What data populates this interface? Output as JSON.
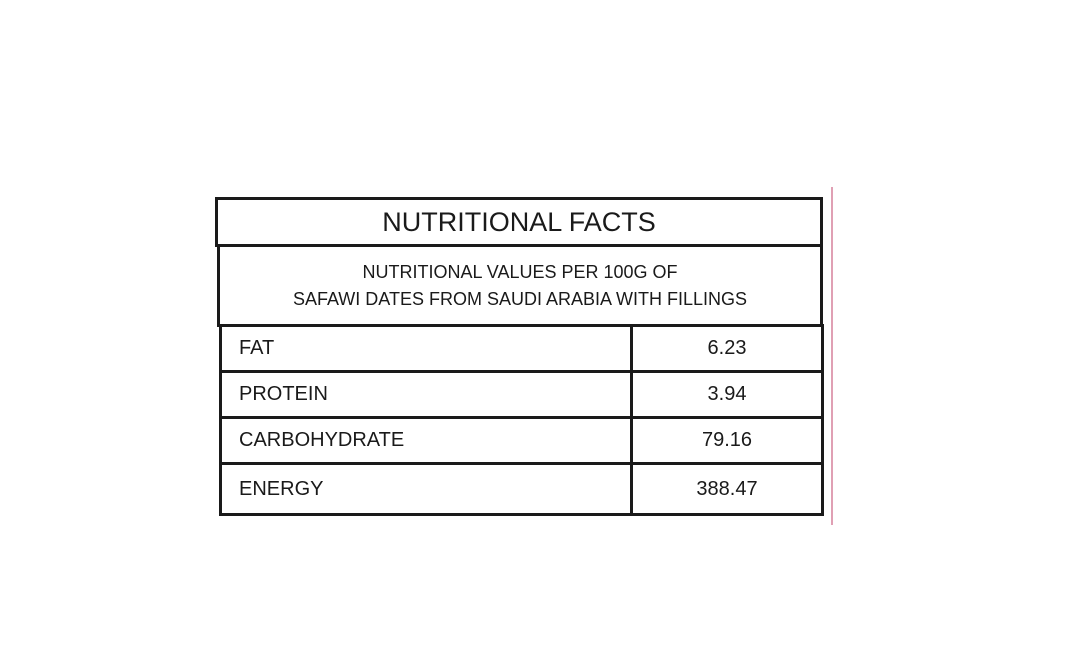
{
  "title": "NUTRITIONAL FACTS",
  "subtitle": {
    "line1": "NUTRITIONAL VALUES PER 100G OF",
    "line2": "SAFAWI DATES FROM SAUDI ARABIA WITH FILLINGS"
  },
  "rows": [
    {
      "label": "FAT",
      "value": "6.23"
    },
    {
      "label": "PROTEIN",
      "value": "3.94"
    },
    {
      "label": "CARBOHYDRATE",
      "value": "79.16"
    },
    {
      "label": "ENERGY",
      "value": "388.47"
    }
  ]
}
